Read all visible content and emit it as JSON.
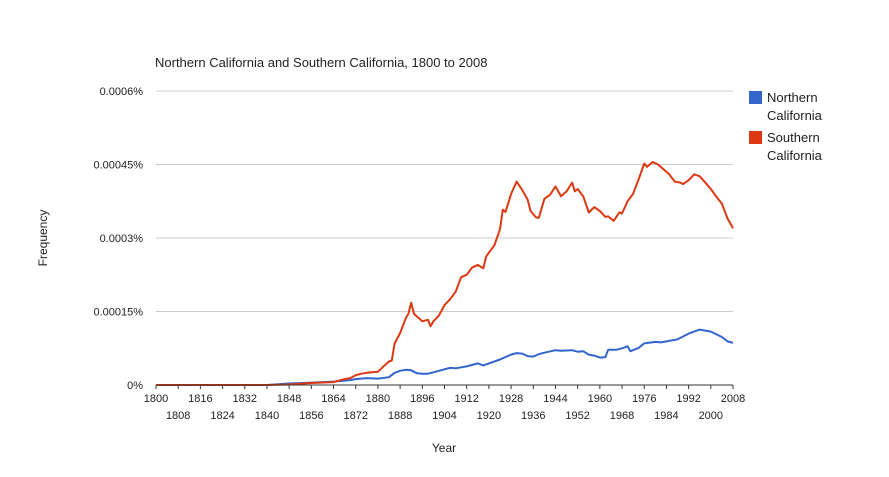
{
  "chart_data": {
    "type": "line",
    "title": "Northern California and Southern California, 1800 to 2008",
    "xlabel": "Year",
    "ylabel": "Frequency",
    "xlim": [
      1800,
      2008
    ],
    "ylim": [
      0,
      0.0006
    ],
    "y_ticks": [
      {
        "value": 0,
        "label": "0%"
      },
      {
        "value": 0.00015,
        "label": "0.00015%"
      },
      {
        "value": 0.0003,
        "label": "0.0003%"
      },
      {
        "value": 0.00045,
        "label": "0.00045%"
      },
      {
        "value": 0.0006,
        "label": "0.0006%"
      }
    ],
    "x_ticks_upper": [
      "1800",
      "1816",
      "1832",
      "1848",
      "1864",
      "1880",
      "1896",
      "1912",
      "1928",
      "1944",
      "1960",
      "1976",
      "1992",
      "2008"
    ],
    "x_ticks_lower": [
      "1808",
      "1824",
      "1840",
      "1856",
      "1872",
      "1888",
      "1904",
      "1920",
      "1936",
      "1952",
      "1968",
      "1984",
      "2000"
    ],
    "legend_position": "right",
    "series": [
      {
        "name": "Northern California",
        "legend_line1": "Northern",
        "legend_line2": "California",
        "color": "#3366cc",
        "points": [
          [
            1800,
            0
          ],
          [
            1840,
            0
          ],
          [
            1848,
            3e-06
          ],
          [
            1856,
            5e-06
          ],
          [
            1864,
            7e-06
          ],
          [
            1870,
            1e-05
          ],
          [
            1872,
            1.2e-05
          ],
          [
            1876,
            1.4e-05
          ],
          [
            1880,
            1.3e-05
          ],
          [
            1884,
            1.6e-05
          ],
          [
            1886,
            2.5e-05
          ],
          [
            1888,
            2.9e-05
          ],
          [
            1890,
            3.1e-05
          ],
          [
            1892,
            3e-05
          ],
          [
            1894,
            2.4e-05
          ],
          [
            1896,
            2.3e-05
          ],
          [
            1898,
            2.3e-05
          ],
          [
            1900,
            2.6e-05
          ],
          [
            1904,
            3.2e-05
          ],
          [
            1906,
            3.5e-05
          ],
          [
            1908,
            3.4e-05
          ],
          [
            1912,
            3.8e-05
          ],
          [
            1916,
            4.4e-05
          ],
          [
            1918,
            4e-05
          ],
          [
            1920,
            4.4e-05
          ],
          [
            1924,
            5.2e-05
          ],
          [
            1928,
            6.2e-05
          ],
          [
            1930,
            6.5e-05
          ],
          [
            1932,
            6.4e-05
          ],
          [
            1934,
            5.9e-05
          ],
          [
            1936,
            5.8e-05
          ],
          [
            1938,
            6.3e-05
          ],
          [
            1940,
            6.6e-05
          ],
          [
            1944,
            7.1e-05
          ],
          [
            1946,
            7e-05
          ],
          [
            1950,
            7.1e-05
          ],
          [
            1952,
            6.8e-05
          ],
          [
            1954,
            6.9e-05
          ],
          [
            1956,
            6.2e-05
          ],
          [
            1958,
            6e-05
          ],
          [
            1960,
            5.6e-05
          ],
          [
            1962,
            5.7e-05
          ],
          [
            1963,
            7.2e-05
          ],
          [
            1966,
            7.2e-05
          ],
          [
            1968,
            7.5e-05
          ],
          [
            1970,
            7.9e-05
          ],
          [
            1971,
            6.9e-05
          ],
          [
            1974,
            7.6e-05
          ],
          [
            1976,
            8.5e-05
          ],
          [
            1980,
            8.8e-05
          ],
          [
            1982,
            8.7e-05
          ],
          [
            1984,
            8.9e-05
          ],
          [
            1988,
            9.3e-05
          ],
          [
            1992,
            0.000105
          ],
          [
            1996,
            0.000113
          ],
          [
            2000,
            0.000109
          ],
          [
            2004,
            9.8e-05
          ],
          [
            2006,
            8.9e-05
          ],
          [
            2008,
            8.6e-05
          ]
        ]
      },
      {
        "name": "Southern California",
        "legend_line1": "Southern",
        "legend_line2": "California",
        "color": "#dc3912",
        "points": [
          [
            1800,
            0
          ],
          [
            1840,
            0
          ],
          [
            1848,
            1e-06
          ],
          [
            1856,
            4e-06
          ],
          [
            1864,
            6e-06
          ],
          [
            1868,
            1.2e-05
          ],
          [
            1870,
            1.4e-05
          ],
          [
            1872,
            2e-05
          ],
          [
            1874,
            2.3e-05
          ],
          [
            1876,
            2.5e-05
          ],
          [
            1880,
            2.7e-05
          ],
          [
            1882,
            3.8e-05
          ],
          [
            1884,
            4.8e-05
          ],
          [
            1885,
            5e-05
          ],
          [
            1886,
            8.5e-05
          ],
          [
            1888,
            0.000106
          ],
          [
            1890,
            0.000136
          ],
          [
            1891,
            0.000145
          ],
          [
            1892,
            0.000168
          ],
          [
            1893,
            0.000145
          ],
          [
            1894,
            0.00014
          ],
          [
            1896,
            0.00013
          ],
          [
            1898,
            0.000133
          ],
          [
            1899,
            0.00012
          ],
          [
            1900,
            0.00013
          ],
          [
            1902,
            0.000142
          ],
          [
            1904,
            0.000163
          ],
          [
            1906,
            0.000175
          ],
          [
            1908,
            0.00019
          ],
          [
            1910,
            0.00022
          ],
          [
            1912,
            0.000225
          ],
          [
            1914,
            0.00024
          ],
          [
            1916,
            0.000245
          ],
          [
            1918,
            0.000238
          ],
          [
            1919,
            0.000262
          ],
          [
            1920,
            0.00027
          ],
          [
            1922,
            0.000285
          ],
          [
            1924,
            0.000318
          ],
          [
            1925,
            0.000358
          ],
          [
            1926,
            0.000353
          ],
          [
            1928,
            0.00039
          ],
          [
            1930,
            0.000415
          ],
          [
            1932,
            0.000398
          ],
          [
            1934,
            0.000378
          ],
          [
            1935,
            0.000355
          ],
          [
            1937,
            0.000342
          ],
          [
            1938,
            0.000341
          ],
          [
            1940,
            0.00038
          ],
          [
            1942,
            0.000388
          ],
          [
            1944,
            0.000405
          ],
          [
            1946,
            0.000385
          ],
          [
            1948,
            0.000395
          ],
          [
            1950,
            0.000413
          ],
          [
            1951,
            0.000395
          ],
          [
            1952,
            0.0004
          ],
          [
            1954,
            0.000385
          ],
          [
            1956,
            0.000352
          ],
          [
            1958,
            0.000363
          ],
          [
            1960,
            0.000355
          ],
          [
            1962,
            0.000343
          ],
          [
            1963,
            0.000344
          ],
          [
            1965,
            0.000335
          ],
          [
            1967,
            0.000352
          ],
          [
            1968,
            0.00035
          ],
          [
            1970,
            0.000375
          ],
          [
            1972,
            0.00039
          ],
          [
            1974,
            0.00042
          ],
          [
            1976,
            0.000452
          ],
          [
            1977,
            0.000445
          ],
          [
            1979,
            0.000455
          ],
          [
            1981,
            0.00045
          ],
          [
            1983,
            0.00044
          ],
          [
            1985,
            0.00043
          ],
          [
            1987,
            0.000415
          ],
          [
            1989,
            0.000413
          ],
          [
            1990,
            0.00041
          ],
          [
            1992,
            0.000418
          ],
          [
            1994,
            0.00043
          ],
          [
            1996,
            0.000426
          ],
          [
            1998,
            0.000413
          ],
          [
            2000,
            0.0004
          ],
          [
            2002,
            0.000384
          ],
          [
            2004,
            0.00037
          ],
          [
            2006,
            0.00034
          ],
          [
            2008,
            0.00032
          ]
        ]
      }
    ]
  }
}
